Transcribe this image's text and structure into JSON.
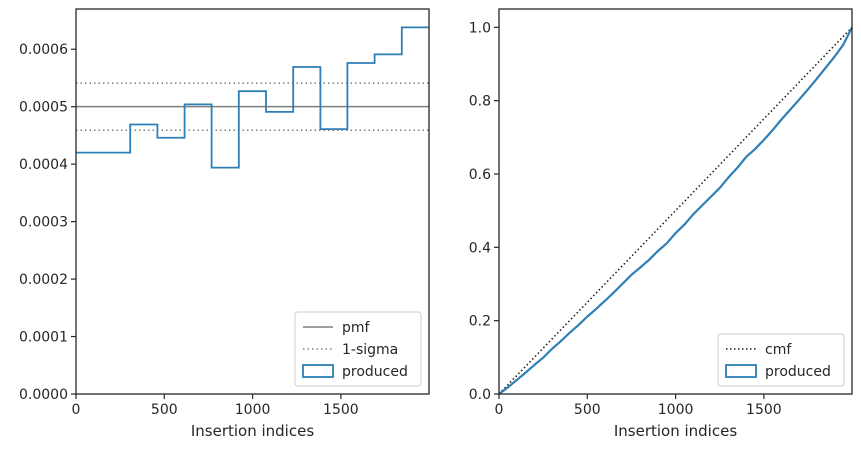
{
  "colors": {
    "produced": "#2e7fb5",
    "reference": "#7f7f7f",
    "cmf": "#1a1a1a",
    "axes": "#262626"
  },
  "chart_data": [
    {
      "type": "step",
      "title": "",
      "xlabel": "Insertion indices",
      "ylabel": "",
      "xlim": [
        0,
        1999
      ],
      "ylim": [
        0,
        0.00067
      ],
      "x_ticks": [
        0,
        500,
        1000,
        1500
      ],
      "x_tick_labels": [
        "0",
        "500",
        "1000",
        "1500"
      ],
      "y_ticks": [
        0,
        0.0001,
        0.0002,
        0.0003,
        0.0004,
        0.0005,
        0.0006
      ],
      "y_tick_labels": [
        "0.0000",
        "0.0001",
        "0.0002",
        "0.0003",
        "0.0004",
        "0.0005",
        "0.0006"
      ],
      "grid": false,
      "legend_position": "bottom-right",
      "series": [
        {
          "name": "pmf",
          "kind": "hline",
          "value": 0.0005,
          "style": "solid"
        },
        {
          "name": "1-sigma",
          "kind": "hlines",
          "values": [
            0.000541,
            0.000459
          ],
          "style": "dotted"
        },
        {
          "name": "produced",
          "kind": "histogram",
          "bin_edges": [
            0,
            307,
            461,
            615,
            768,
            922,
            1076,
            1230,
            1384,
            1537,
            1691,
            1845,
            1999
          ],
          "values": [
            0.00042,
            0.000469,
            0.000446,
            0.000504,
            0.000394,
            0.000527,
            0.000491,
            0.000569,
            0.000461,
            0.000576,
            0.000591,
            0.000638
          ]
        }
      ]
    },
    {
      "type": "line",
      "title": "",
      "xlabel": "Insertion indices",
      "ylabel": "",
      "xlim": [
        0,
        1999
      ],
      "ylim": [
        0,
        1.05
      ],
      "x_ticks": [
        0,
        500,
        1000,
        1500
      ],
      "x_tick_labels": [
        "0",
        "500",
        "1000",
        "1500"
      ],
      "y_ticks": [
        0,
        0.2,
        0.4,
        0.6,
        0.8,
        1.0
      ],
      "y_tick_labels": [
        "0.0",
        "0.2",
        "0.4",
        "0.6",
        "0.8",
        "1.0"
      ],
      "grid": false,
      "legend_position": "bottom-right",
      "series": [
        {
          "name": "cmf",
          "kind": "line",
          "x": [
            0,
            1999
          ],
          "values": [
            0,
            1
          ],
          "style": "dotted"
        },
        {
          "name": "produced",
          "kind": "ecdf",
          "x": [
            0,
            50,
            100,
            150,
            200,
            250,
            300,
            350,
            400,
            450,
            500,
            550,
            600,
            650,
            700,
            750,
            800,
            850,
            900,
            950,
            1000,
            1050,
            1100,
            1150,
            1200,
            1250,
            1300,
            1350,
            1400,
            1450,
            1500,
            1550,
            1600,
            1650,
            1700,
            1750,
            1800,
            1850,
            1900,
            1950,
            1999
          ],
          "values": [
            0,
            0.018,
            0.038,
            0.058,
            0.079,
            0.099,
            0.123,
            0.144,
            0.167,
            0.188,
            0.211,
            0.232,
            0.254,
            0.277,
            0.301,
            0.325,
            0.345,
            0.366,
            0.39,
            0.411,
            0.439,
            0.462,
            0.49,
            0.514,
            0.538,
            0.562,
            0.591,
            0.617,
            0.647,
            0.668,
            0.693,
            0.72,
            0.749,
            0.776,
            0.803,
            0.831,
            0.86,
            0.89,
            0.92,
            0.953,
            1.0
          ]
        }
      ]
    }
  ]
}
